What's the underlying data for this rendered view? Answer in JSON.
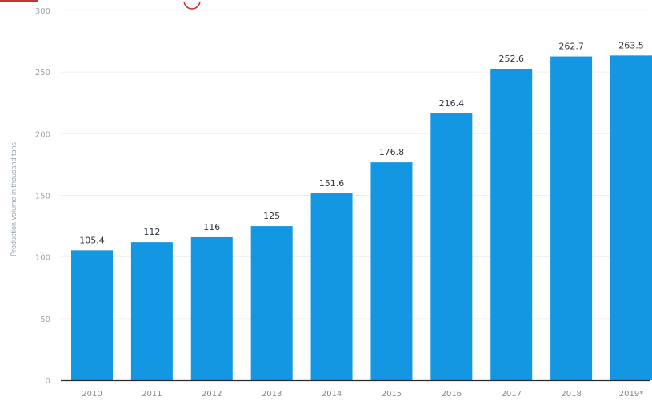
{
  "chart_data": {
    "type": "bar",
    "title": "",
    "xlabel": "",
    "ylabel": "Production volume in thousand tons",
    "categories": [
      "2010",
      "2011",
      "2012",
      "2013",
      "2014",
      "2015",
      "2016",
      "2017",
      "2018",
      "2019*"
    ],
    "values": [
      105.4,
      112,
      116,
      125,
      151.6,
      176.8,
      216.4,
      252.6,
      262.7,
      263.5
    ],
    "data_labels": [
      "105.4",
      "112",
      "116",
      "125",
      "151.6",
      "176.8",
      "216.4",
      "252.6",
      "262.7",
      "263.5"
    ],
    "ylim": [
      0,
      300
    ],
    "yticks": [
      0,
      50,
      100,
      150,
      200,
      250,
      300
    ],
    "grid": true,
    "legend": "none",
    "bar_color": "#1497e3"
  }
}
